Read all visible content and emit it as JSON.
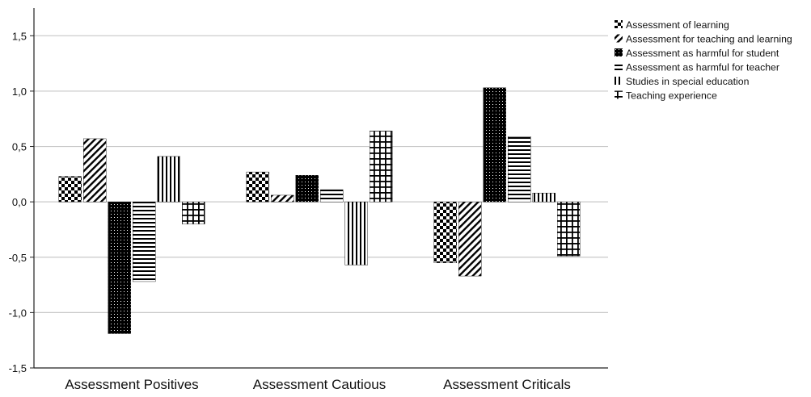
{
  "chart_data": {
    "type": "bar",
    "categories": [
      "Assessment Positives",
      "Assessment Cautious",
      "Assessment Criticals"
    ],
    "series": [
      {
        "name": "Assessment of learning",
        "values": [
          0.23,
          0.27,
          -0.55
        ],
        "pattern": "checker"
      },
      {
        "name": "Assessment for teaching and learning",
        "values": [
          0.57,
          0.06,
          -0.67
        ],
        "pattern": "diagonal"
      },
      {
        "name": "Assessment as harmful for student",
        "values": [
          -1.19,
          0.24,
          1.03
        ],
        "pattern": "dense-dots"
      },
      {
        "name": "Assessment as harmful for teacher",
        "values": [
          -0.72,
          0.11,
          0.59
        ],
        "pattern": "horizontal"
      },
      {
        "name": "Studies in special education",
        "values": [
          0.41,
          -0.57,
          0.08
        ],
        "pattern": "vertical"
      },
      {
        "name": "Teaching experience",
        "values": [
          -0.2,
          0.64,
          -0.49
        ],
        "pattern": "grid"
      }
    ],
    "ylim": [
      -1.5,
      1.75
    ],
    "yticks": [
      1.5,
      1.0,
      0.5,
      0.0,
      -0.5,
      -1.0,
      -1.5
    ],
    "ytick_labels": [
      "1,5",
      "1,0",
      "0,5",
      "0,0",
      "-0,5",
      "-1,0",
      "-1,5"
    ],
    "grid": true,
    "legend_position": "top-right",
    "colors": {
      "bar_fill": "#000000",
      "bar_background": "#ffffff",
      "grid": "#c8c8c8",
      "axis": "#222222"
    }
  }
}
